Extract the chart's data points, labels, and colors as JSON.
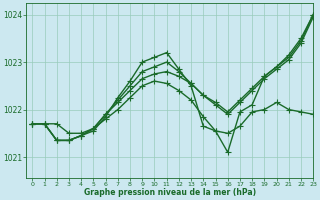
{
  "xlabel": "Graphe pression niveau de la mer (hPa)",
  "ylim": [
    1020.55,
    1024.25
  ],
  "xlim": [
    -0.5,
    23
  ],
  "yticks": [
    1021,
    1022,
    1023,
    1024
  ],
  "xticks": [
    0,
    1,
    2,
    3,
    4,
    5,
    6,
    7,
    8,
    9,
    10,
    11,
    12,
    13,
    14,
    15,
    16,
    17,
    18,
    19,
    20,
    21,
    22,
    23
  ],
  "bg_color": "#cce8f0",
  "grid_color": "#99ccbb",
  "line_color": "#1a6b2a",
  "line_width": 1.0,
  "marker": "+",
  "marker_size": 4,
  "lines": [
    [
      1021.7,
      1021.7,
      1021.7,
      1021.5,
      1021.5,
      1021.6,
      1021.8,
      1022.0,
      1022.25,
      1022.5,
      1022.6,
      1022.55,
      1022.4,
      1022.2,
      1021.85,
      1021.55,
      1021.5,
      1021.65,
      1021.95,
      1022.0,
      1022.15,
      1022.0,
      1021.95,
      1021.9
    ],
    [
      1021.7,
      1021.7,
      1021.35,
      1021.35,
      1021.45,
      1021.55,
      1021.85,
      1022.25,
      1022.6,
      1023.0,
      1023.1,
      1023.2,
      1022.85,
      1022.5,
      1021.65,
      1021.55,
      1021.1,
      1021.95,
      1022.1,
      1022.7,
      1022.9,
      1023.15,
      1023.5,
      1024.0
    ],
    [
      1021.7,
      1021.7,
      1021.35,
      1021.35,
      1021.45,
      1021.6,
      1021.9,
      1022.15,
      1022.4,
      1022.65,
      1022.75,
      1022.8,
      1022.7,
      1022.55,
      1022.3,
      1022.15,
      1021.95,
      1022.2,
      1022.45,
      1022.7,
      1022.9,
      1023.1,
      1023.45,
      1024.0
    ],
    [
      1021.7,
      1021.7,
      1021.35,
      1021.35,
      1021.45,
      1021.6,
      1021.9,
      1022.2,
      1022.5,
      1022.8,
      1022.9,
      1023.0,
      1022.8,
      1022.55,
      1022.3,
      1022.1,
      1021.9,
      1022.15,
      1022.4,
      1022.65,
      1022.85,
      1023.05,
      1023.4,
      1023.95
    ]
  ]
}
